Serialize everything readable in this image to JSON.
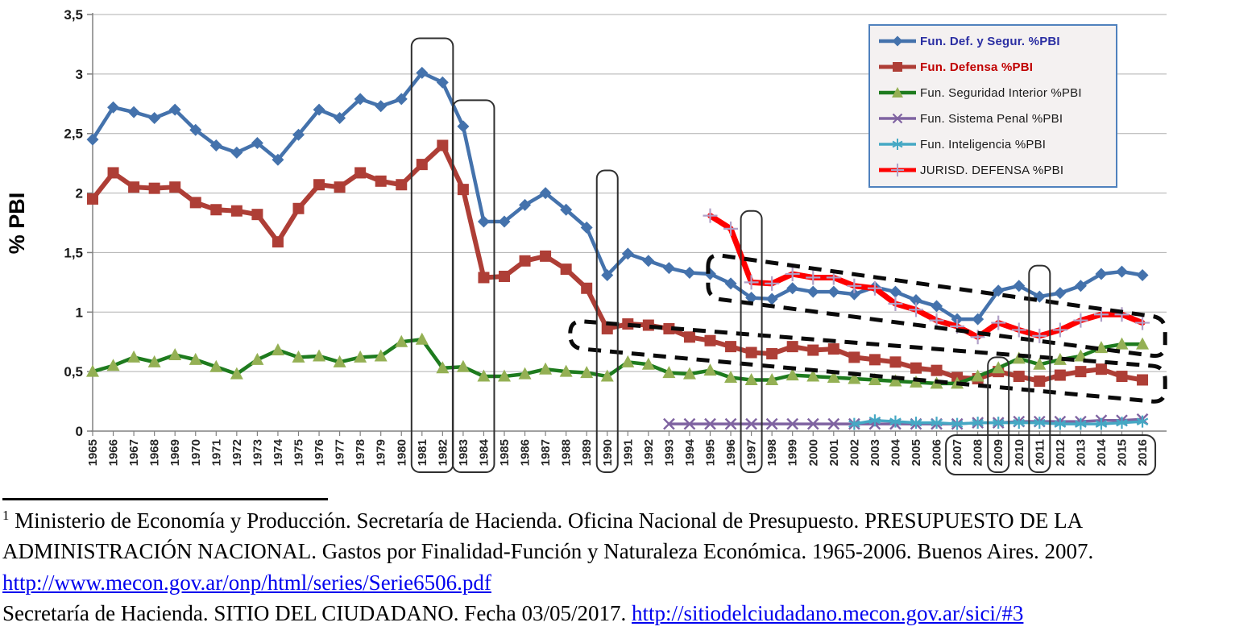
{
  "chart": {
    "ylabel": "% PBI",
    "y_ticks": [
      "0",
      "0,5",
      "1",
      "1,5",
      "2",
      "2,5",
      "3",
      "3,5"
    ]
  },
  "chart_data": {
    "type": "line",
    "title": "",
    "xlabel": "",
    "ylabel": "% PBI",
    "ylim": [
      0,
      3.5
    ],
    "grid": true,
    "legend_position": "top-right",
    "x": [
      1965,
      1966,
      1967,
      1968,
      1969,
      1970,
      1971,
      1972,
      1973,
      1974,
      1975,
      1976,
      1977,
      1978,
      1979,
      1980,
      1981,
      1982,
      1983,
      1984,
      1985,
      1986,
      1987,
      1988,
      1989,
      1990,
      1991,
      1992,
      1993,
      1994,
      1995,
      1996,
      1997,
      1998,
      1999,
      2000,
      2001,
      2002,
      2003,
      2004,
      2005,
      2006,
      2007,
      2008,
      2009,
      2010,
      2011,
      2012,
      2013,
      2014,
      2015,
      2016
    ],
    "series": [
      {
        "name": "Fun. Def. y Segur. %PBI",
        "color": "#4472AC",
        "marker": "diamond",
        "marker_color": "#4472AC",
        "line_width": 4.5,
        "values": [
          2.45,
          2.72,
          2.68,
          2.63,
          2.7,
          2.53,
          2.4,
          2.34,
          2.42,
          2.28,
          2.49,
          2.7,
          2.63,
          2.79,
          2.73,
          2.79,
          3.01,
          2.93,
          2.56,
          1.76,
          1.76,
          1.9,
          2.0,
          1.86,
          1.71,
          1.31,
          1.49,
          1.43,
          1.37,
          1.33,
          1.32,
          1.24,
          1.12,
          1.11,
          1.2,
          1.17,
          1.17,
          1.15,
          1.21,
          1.17,
          1.1,
          1.05,
          0.94,
          0.94,
          1.18,
          1.22,
          1.13,
          1.16,
          1.22,
          1.32,
          1.34,
          1.31
        ]
      },
      {
        "name": "Fun. Defensa %PBI",
        "color": "#AE3E36",
        "marker": "square",
        "marker_color": "#AE3E36",
        "line_width": 6,
        "values": [
          1.95,
          2.17,
          2.05,
          2.04,
          2.05,
          1.92,
          1.86,
          1.85,
          1.82,
          1.59,
          1.87,
          2.07,
          2.05,
          2.17,
          2.1,
          2.07,
          2.24,
          2.4,
          2.03,
          1.29,
          1.3,
          1.43,
          1.47,
          1.36,
          1.2,
          0.86,
          0.9,
          0.89,
          0.86,
          0.79,
          0.76,
          0.71,
          0.66,
          0.65,
          0.71,
          0.68,
          0.69,
          0.62,
          0.6,
          0.58,
          0.53,
          0.51,
          0.45,
          0.44,
          0.5,
          0.46,
          0.42,
          0.47,
          0.5,
          0.52,
          0.46,
          0.43
        ]
      },
      {
        "name": "Fun. Seguridad Interior %PBI",
        "color": "#1E7B1E",
        "marker": "triangle",
        "marker_color": "#94B054",
        "line_width": 4.5,
        "values": [
          0.5,
          0.55,
          0.62,
          0.58,
          0.64,
          0.6,
          0.54,
          0.48,
          0.6,
          0.68,
          0.62,
          0.63,
          0.58,
          0.62,
          0.63,
          0.75,
          0.77,
          0.53,
          0.54,
          0.46,
          0.46,
          0.48,
          0.52,
          0.5,
          0.49,
          0.46,
          0.58,
          0.56,
          0.49,
          0.48,
          0.51,
          0.45,
          0.43,
          0.43,
          0.47,
          0.46,
          0.45,
          0.44,
          0.43,
          0.42,
          0.41,
          0.4,
          0.4,
          0.46,
          0.53,
          0.61,
          0.56,
          0.6,
          0.63,
          0.7,
          0.73,
          0.73
        ]
      },
      {
        "name": "Fun. Sistema Penal %PBI",
        "color": "#7F63A1",
        "marker": "x",
        "marker_color": "#7F63A1",
        "line_width": 3.5,
        "values": [
          null,
          null,
          null,
          null,
          null,
          null,
          null,
          null,
          null,
          null,
          null,
          null,
          null,
          null,
          null,
          null,
          null,
          null,
          null,
          null,
          null,
          null,
          null,
          null,
          null,
          null,
          null,
          null,
          0.06,
          0.06,
          0.06,
          0.06,
          0.06,
          0.06,
          0.06,
          0.06,
          0.06,
          0.06,
          0.06,
          0.06,
          0.06,
          0.06,
          0.06,
          0.07,
          0.07,
          0.08,
          0.08,
          0.08,
          0.08,
          0.09,
          0.09,
          0.1
        ]
      },
      {
        "name": "Fun. Inteligencia %PBI",
        "color": "#45A8C4",
        "marker": "asterisk",
        "marker_color": "#45A8C4",
        "line_width": 3.5,
        "values": [
          null,
          null,
          null,
          null,
          null,
          null,
          null,
          null,
          null,
          null,
          null,
          null,
          null,
          null,
          null,
          null,
          null,
          null,
          null,
          null,
          null,
          null,
          null,
          null,
          null,
          null,
          null,
          null,
          null,
          null,
          null,
          null,
          null,
          null,
          null,
          null,
          null,
          0.06,
          0.09,
          0.08,
          0.07,
          0.07,
          0.06,
          0.07,
          0.07,
          0.07,
          0.07,
          0.06,
          0.06,
          0.06,
          0.07,
          0.08
        ]
      },
      {
        "name": "JURISD. DEFENSA  %PBI",
        "color": "#FE0000",
        "marker": "plus",
        "marker_color": "#B1A0C7",
        "line_width": 7,
        "values": [
          null,
          null,
          null,
          null,
          null,
          null,
          null,
          null,
          null,
          null,
          null,
          null,
          null,
          null,
          null,
          null,
          null,
          null,
          null,
          null,
          null,
          null,
          null,
          null,
          null,
          null,
          null,
          null,
          null,
          null,
          1.81,
          1.7,
          1.25,
          1.24,
          1.32,
          1.29,
          1.29,
          1.22,
          1.2,
          1.07,
          1.02,
          0.93,
          0.88,
          0.79,
          0.91,
          0.85,
          0.8,
          0.85,
          0.93,
          0.98,
          0.98,
          0.91
        ]
      }
    ]
  },
  "legend": {
    "items": [
      {
        "label": "Fun. Def. y Segur. %PBI",
        "text_color": "#2B2FA3",
        "bold": true
      },
      {
        "label": "Fun. Defensa %PBI",
        "text_color": "#C00000",
        "bold": true
      },
      {
        "label": "Fun. Seguridad Interior %PBI",
        "text_color": "#1A1A1A",
        "bold": false
      },
      {
        "label": "Fun. Sistema Penal %PBI",
        "text_color": "#1A1A1A",
        "bold": false
      },
      {
        "label": "Fun. Inteligencia %PBI",
        "text_color": "#1A1A1A",
        "bold": false
      },
      {
        "label": "JURISD. DEFENSA  %PBI",
        "text_color": "#1A1A1A",
        "bold": false
      }
    ]
  },
  "annotations": {
    "highlight_boxes": [
      {
        "name": "box-1981-1982",
        "year_from": 1981,
        "year_to": 1982,
        "value_top": 3.3
      },
      {
        "name": "box-1983-1984",
        "year_from": 1983,
        "year_to": 1984,
        "value_top": 2.78
      },
      {
        "name": "box-1990",
        "year_from": 1990,
        "year_to": 1990,
        "value_top": 2.19
      },
      {
        "name": "box-1997",
        "year_from": 1997,
        "year_to": 1997,
        "value_top": 1.85
      },
      {
        "name": "box-2009",
        "year_from": 2009,
        "year_to": 2009,
        "value_top": 0.62
      },
      {
        "name": "box-2011",
        "year_from": 2011,
        "year_to": 2011,
        "value_top": 1.39
      }
    ],
    "xlabel_box": {
      "year_from": 2007,
      "year_to": 2016
    },
    "dashed_shapes": [
      {
        "name": "trend-def-segur",
        "year_from": 1994.9,
        "year_to": 2017.1,
        "top_from": 1.49,
        "top_to": 0.95,
        "bottom_from": 1.12,
        "bottom_to": 0.62
      },
      {
        "name": "trend-defensa",
        "year_from": 1988.2,
        "year_to": 2017.1,
        "top_from": 0.93,
        "top_to": 0.54,
        "bottom_from": 0.7,
        "bottom_to": 0.24
      }
    ]
  },
  "footnote": {
    "marker": "1",
    "text1": " Ministerio de Economía y Producción. Secretaría de Hacienda. Oficina Nacional de Presupuesto. PRESUPUESTO DE LA ADMINISTRACIÓN NACIONAL. Gastos por Finalidad-Función y Naturaleza Económica. 1965-2006. Buenos Aires. 2007.  ",
    "link1": "http://www.mecon.gov.ar/onp/html/series/Serie6506.pdf",
    "text2": "Secretaría de Hacienda. SITIO DEL CIUDADANO. Fecha 03/05/2017. ",
    "link2": "http://sitiodelciudadano.mecon.gov.ar/sici/#3"
  }
}
